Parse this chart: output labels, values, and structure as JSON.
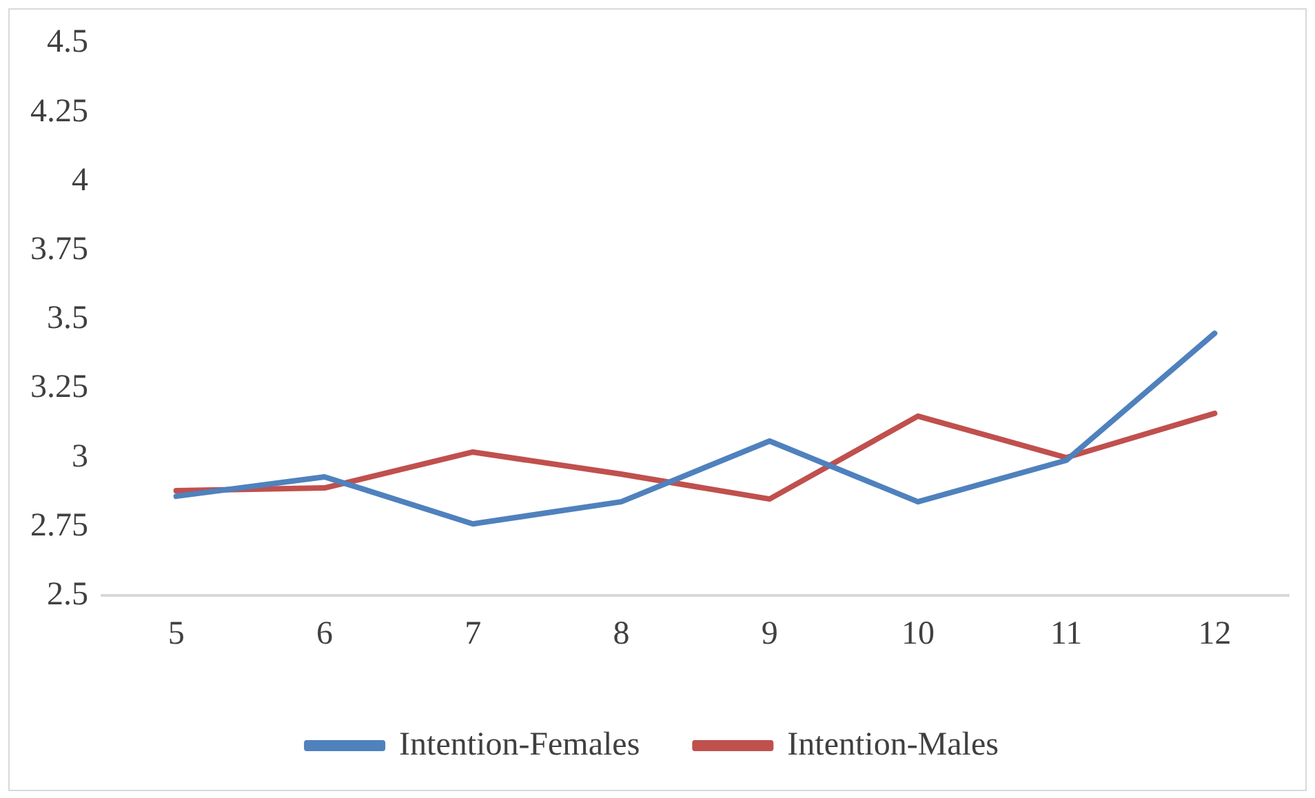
{
  "chart_data": {
    "type": "line",
    "categories": [
      "5",
      "6",
      "7",
      "8",
      "9",
      "10",
      "11",
      "12"
    ],
    "series": [
      {
        "name": "Intention-Females",
        "color": "#4f81bd",
        "values": [
          2.86,
          2.93,
          2.76,
          2.84,
          3.06,
          2.84,
          2.99,
          3.45
        ]
      },
      {
        "name": "Intention-Males",
        "color": "#c0504d",
        "values": [
          2.88,
          2.89,
          3.02,
          2.94,
          2.85,
          3.15,
          3.0,
          3.16
        ]
      }
    ],
    "ylim": [
      2.5,
      4.5
    ],
    "yticks": [
      2.5,
      2.75,
      3,
      3.25,
      3.5,
      3.75,
      4,
      4.25,
      4.5
    ],
    "grid": false,
    "legend": "bottom",
    "marker": "none",
    "line_style": "solid"
  }
}
